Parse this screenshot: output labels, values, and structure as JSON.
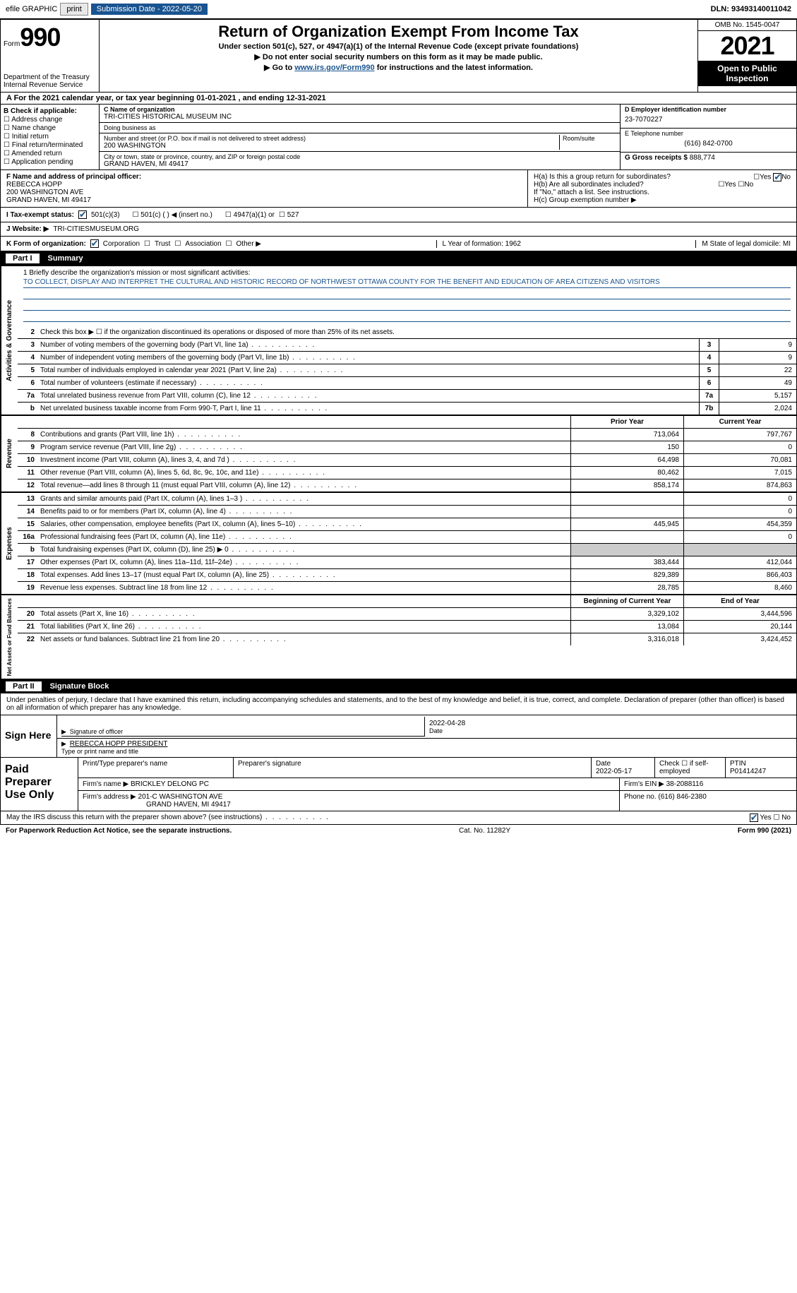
{
  "topbar": {
    "efile": "efile GRAPHIC",
    "print": "print",
    "submission": "Submission Date - 2022-05-20",
    "dln": "DLN: 93493140011042"
  },
  "header": {
    "form_word": "Form",
    "form_num": "990",
    "dept": "Department of the Treasury\nInternal Revenue Service",
    "title": "Return of Organization Exempt From Income Tax",
    "sub1": "Under section 501(c), 527, or 4947(a)(1) of the Internal Revenue Code (except private foundations)",
    "sub2": "▶ Do not enter social security numbers on this form as it may be made public.",
    "sub3_a": "▶ Go to ",
    "sub3_link": "www.irs.gov/Form990",
    "sub3_b": " for instructions and the latest information.",
    "omb": "OMB No. 1545-0047",
    "year": "2021",
    "open": "Open to Public Inspection"
  },
  "rowA": "A For the 2021 calendar year, or tax year beginning 01-01-2021   , and ending 12-31-2021",
  "colB": {
    "title": "B Check if applicable:",
    "items": [
      "Address change",
      "Name change",
      "Initial return",
      "Final return/terminated",
      "Amended return",
      "Application pending"
    ]
  },
  "colC": {
    "name_label": "C Name of organization",
    "name": "TRI-CITIES HISTORICAL MUSEUM INC",
    "dba_label": "Doing business as",
    "dba": "",
    "addr_label": "Number and street (or P.O. box if mail is not delivered to street address)",
    "room_label": "Room/suite",
    "addr": "200 WASHINGTON",
    "city_label": "City or town, state or province, country, and ZIP or foreign postal code",
    "city": "GRAND HAVEN, MI  49417"
  },
  "colDE": {
    "d_label": "D Employer identification number",
    "d_val": "23-7070227",
    "e_label": "E Telephone number",
    "e_val": "(616) 842-0700",
    "g_label": "G Gross receipts $",
    "g_val": "888,774"
  },
  "fh": {
    "f_label": "F Name and address of principal officer:",
    "f_name": "REBECCA HOPP",
    "f_addr1": "200 WASHINGTON AVE",
    "f_addr2": "GRAND HAVEN, MI  49417",
    "ha": "H(a)  Is this a group return for subordinates?",
    "hb": "H(b)  Are all subordinates included?",
    "hnote": "If \"No,\" attach a list. See instructions.",
    "hc": "H(c)  Group exemption number ▶"
  },
  "taxrow": {
    "label": "I  Tax-exempt status:",
    "o1": "501(c)(3)",
    "o2": "501(c) (  ) ◀ (insert no.)",
    "o3": "4947(a)(1) or",
    "o4": "527"
  },
  "webrow": {
    "label": "J  Website: ▶",
    "val": "TRI-CITIESMUSEUM.ORG"
  },
  "krow": {
    "k": "K Form of organization:",
    "corp": "Corporation",
    "trust": "Trust",
    "assoc": "Association",
    "other": "Other ▶",
    "l": "L Year of formation: 1962",
    "m": "M State of legal domicile: MI"
  },
  "part1": {
    "label": "Part I",
    "title": "Summary"
  },
  "mission": {
    "l1": "1   Briefly describe the organization's mission or most significant activities:",
    "text": "TO COLLECT, DISPLAY AND INTERPRET THE CULTURAL AND HISTORIC RECORD OF NORTHWEST OTTAWA COUNTY FOR THE BENEFIT AND EDUCATION OF AREA CITIZENS AND VISITORS"
  },
  "gov_lines": [
    {
      "n": "2",
      "t": "Check this box ▶ ☐  if the organization discontinued its operations or disposed of more than 25% of its net assets."
    },
    {
      "n": "3",
      "t": "Number of voting members of the governing body (Part VI, line 1a)",
      "box": "3",
      "v": "9"
    },
    {
      "n": "4",
      "t": "Number of independent voting members of the governing body (Part VI, line 1b)",
      "box": "4",
      "v": "9"
    },
    {
      "n": "5",
      "t": "Total number of individuals employed in calendar year 2021 (Part V, line 2a)",
      "box": "5",
      "v": "22"
    },
    {
      "n": "6",
      "t": "Total number of volunteers (estimate if necessary)",
      "box": "6",
      "v": "49"
    },
    {
      "n": "7a",
      "t": "Total unrelated business revenue from Part VIII, column (C), line 12",
      "box": "7a",
      "v": "5,157"
    },
    {
      "n": "b",
      "t": "Net unrelated business taxable income from Form 990-T, Part I, line 11",
      "box": "7b",
      "v": "2,024"
    }
  ],
  "col_hdrs": {
    "prior": "Prior Year",
    "current": "Current Year",
    "beg": "Beginning of Current Year",
    "end": "End of Year"
  },
  "rev_lines": [
    {
      "n": "8",
      "t": "Contributions and grants (Part VIII, line 1h)",
      "p": "713,064",
      "c": "797,767"
    },
    {
      "n": "9",
      "t": "Program service revenue (Part VIII, line 2g)",
      "p": "150",
      "c": "0"
    },
    {
      "n": "10",
      "t": "Investment income (Part VIII, column (A), lines 3, 4, and 7d )",
      "p": "64,498",
      "c": "70,081"
    },
    {
      "n": "11",
      "t": "Other revenue (Part VIII, column (A), lines 5, 6d, 8c, 9c, 10c, and 11e)",
      "p": "80,462",
      "c": "7,015"
    },
    {
      "n": "12",
      "t": "Total revenue—add lines 8 through 11 (must equal Part VIII, column (A), line 12)",
      "p": "858,174",
      "c": "874,863"
    }
  ],
  "exp_lines": [
    {
      "n": "13",
      "t": "Grants and similar amounts paid (Part IX, column (A), lines 1–3 )",
      "p": "",
      "c": "0"
    },
    {
      "n": "14",
      "t": "Benefits paid to or for members (Part IX, column (A), line 4)",
      "p": "",
      "c": "0"
    },
    {
      "n": "15",
      "t": "Salaries, other compensation, employee benefits (Part IX, column (A), lines 5–10)",
      "p": "445,945",
      "c": "454,359"
    },
    {
      "n": "16a",
      "t": "Professional fundraising fees (Part IX, column (A), line 11e)",
      "p": "",
      "c": "0"
    },
    {
      "n": "b",
      "t": "Total fundraising expenses (Part IX, column (D), line 25) ▶ 0",
      "p": "shade",
      "c": "shade"
    },
    {
      "n": "17",
      "t": "Other expenses (Part IX, column (A), lines 11a–11d, 11f–24e)",
      "p": "383,444",
      "c": "412,044"
    },
    {
      "n": "18",
      "t": "Total expenses. Add lines 13–17 (must equal Part IX, column (A), line 25)",
      "p": "829,389",
      "c": "866,403"
    },
    {
      "n": "19",
      "t": "Revenue less expenses. Subtract line 18 from line 12",
      "p": "28,785",
      "c": "8,460"
    }
  ],
  "net_lines": [
    {
      "n": "20",
      "t": "Total assets (Part X, line 16)",
      "p": "3,329,102",
      "c": "3,444,596"
    },
    {
      "n": "21",
      "t": "Total liabilities (Part X, line 26)",
      "p": "13,084",
      "c": "20,144"
    },
    {
      "n": "22",
      "t": "Net assets or fund balances. Subtract line 21 from line 20",
      "p": "3,316,018",
      "c": "3,424,452"
    }
  ],
  "vtabs": {
    "gov": "Activities & Governance",
    "rev": "Revenue",
    "exp": "Expenses",
    "net": "Net Assets or Fund Balances"
  },
  "part2": {
    "label": "Part II",
    "title": "Signature Block"
  },
  "penalty": "Under penalties of perjury, I declare that I have examined this return, including accompanying schedules and statements, and to the best of my knowledge and belief, it is true, correct, and complete. Declaration of preparer (other than officer) is based on all information of which preparer has any knowledge.",
  "sign": {
    "label": "Sign Here",
    "sig_of": "Signature of officer",
    "date": "2022-04-28",
    "name": "REBECCA HOPP  PRESIDENT",
    "name_label": "Type or print name and title"
  },
  "paid": {
    "label": "Paid Preparer Use Only",
    "h1": "Print/Type preparer's name",
    "h2": "Preparer's signature",
    "h3": "Date",
    "h3v": "2022-05-17",
    "h4": "Check ☐ if self-employed",
    "h5": "PTIN",
    "h5v": "P01414247",
    "firm_l": "Firm's name   ▶",
    "firm": "BRICKLEY DELONG PC",
    "ein_l": "Firm's EIN ▶",
    "ein": "38-2088116",
    "addr_l": "Firm's address ▶",
    "addr": "201-C WASHINGTON AVE",
    "addr2": "GRAND HAVEN, MI  49417",
    "phone_l": "Phone no.",
    "phone": "(616) 846-2380"
  },
  "bottom": {
    "q": "May the IRS discuss this return with the preparer shown above? (see instructions)",
    "yes": "Yes",
    "no": "No"
  },
  "footer": {
    "l": "For Paperwork Reduction Act Notice, see the separate instructions.",
    "m": "Cat. No. 11282Y",
    "r": "Form 990 (2021)"
  }
}
